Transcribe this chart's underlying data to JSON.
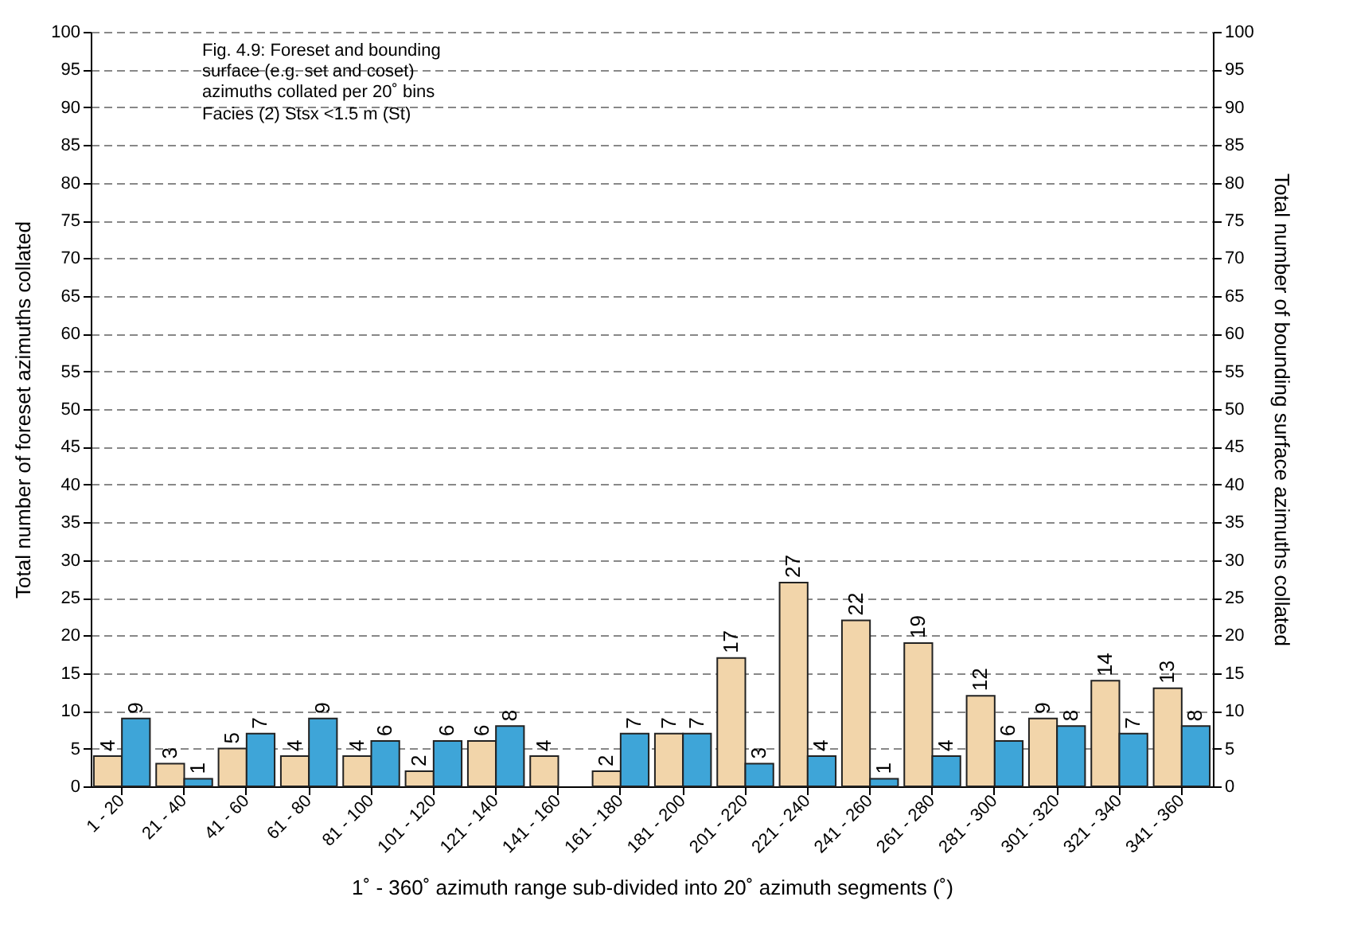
{
  "chart_data": {
    "type": "bar",
    "categories": [
      "1 - 20",
      "21 - 40",
      "41 - 60",
      "61 - 80",
      "81 - 100",
      "101 - 120",
      "121 - 140",
      "141 - 160",
      "161 - 180",
      "181 - 200",
      "201 - 220",
      "221 - 240",
      "241 - 260",
      "261 - 280",
      "281 - 300",
      "301 - 320",
      "321 - 340",
      "341 - 360"
    ],
    "series": [
      {
        "color": "#f2d5aa",
        "values": [
          4,
          3,
          5,
          4,
          4,
          2,
          6,
          4,
          2,
          7,
          17,
          27,
          22,
          19,
          12,
          9,
          14,
          13
        ]
      },
      {
        "color": "#3ea5d8",
        "axis": "y2",
        "values": [
          9,
          1,
          7,
          9,
          6,
          6,
          8,
          null,
          7,
          7,
          3,
          4,
          1,
          4,
          6,
          8,
          7,
          8
        ]
      }
    ],
    "xlabel": "1˚ - 360˚ azimuth range sub-divided into 20˚ azimuth segments (˚)",
    "ylabel": "Total number of foreset azimuths collated",
    "y2label": "Total number of bounding surface azimuths collated",
    "ylim": [
      0,
      100
    ],
    "yticks": [
      0,
      5,
      10,
      15,
      20,
      25,
      30,
      35,
      40,
      45,
      50,
      55,
      60,
      65,
      70,
      75,
      80,
      85,
      90,
      95,
      100
    ],
    "y2lim": [
      0,
      100
    ],
    "y2ticks": [
      0,
      5,
      10,
      15,
      20,
      25,
      30,
      35,
      40,
      45,
      50,
      55,
      60,
      65,
      70,
      75,
      80,
      85,
      90,
      95,
      100
    ],
    "annotations": [
      "Fig. 4.9: Foreset and bounding surface (e.g. set and coset) azimuths collated per 20˚ bins",
      "Facies (2) Stsx <1.5 m (St)"
    ],
    "data_labels": true,
    "grid": "y"
  }
}
